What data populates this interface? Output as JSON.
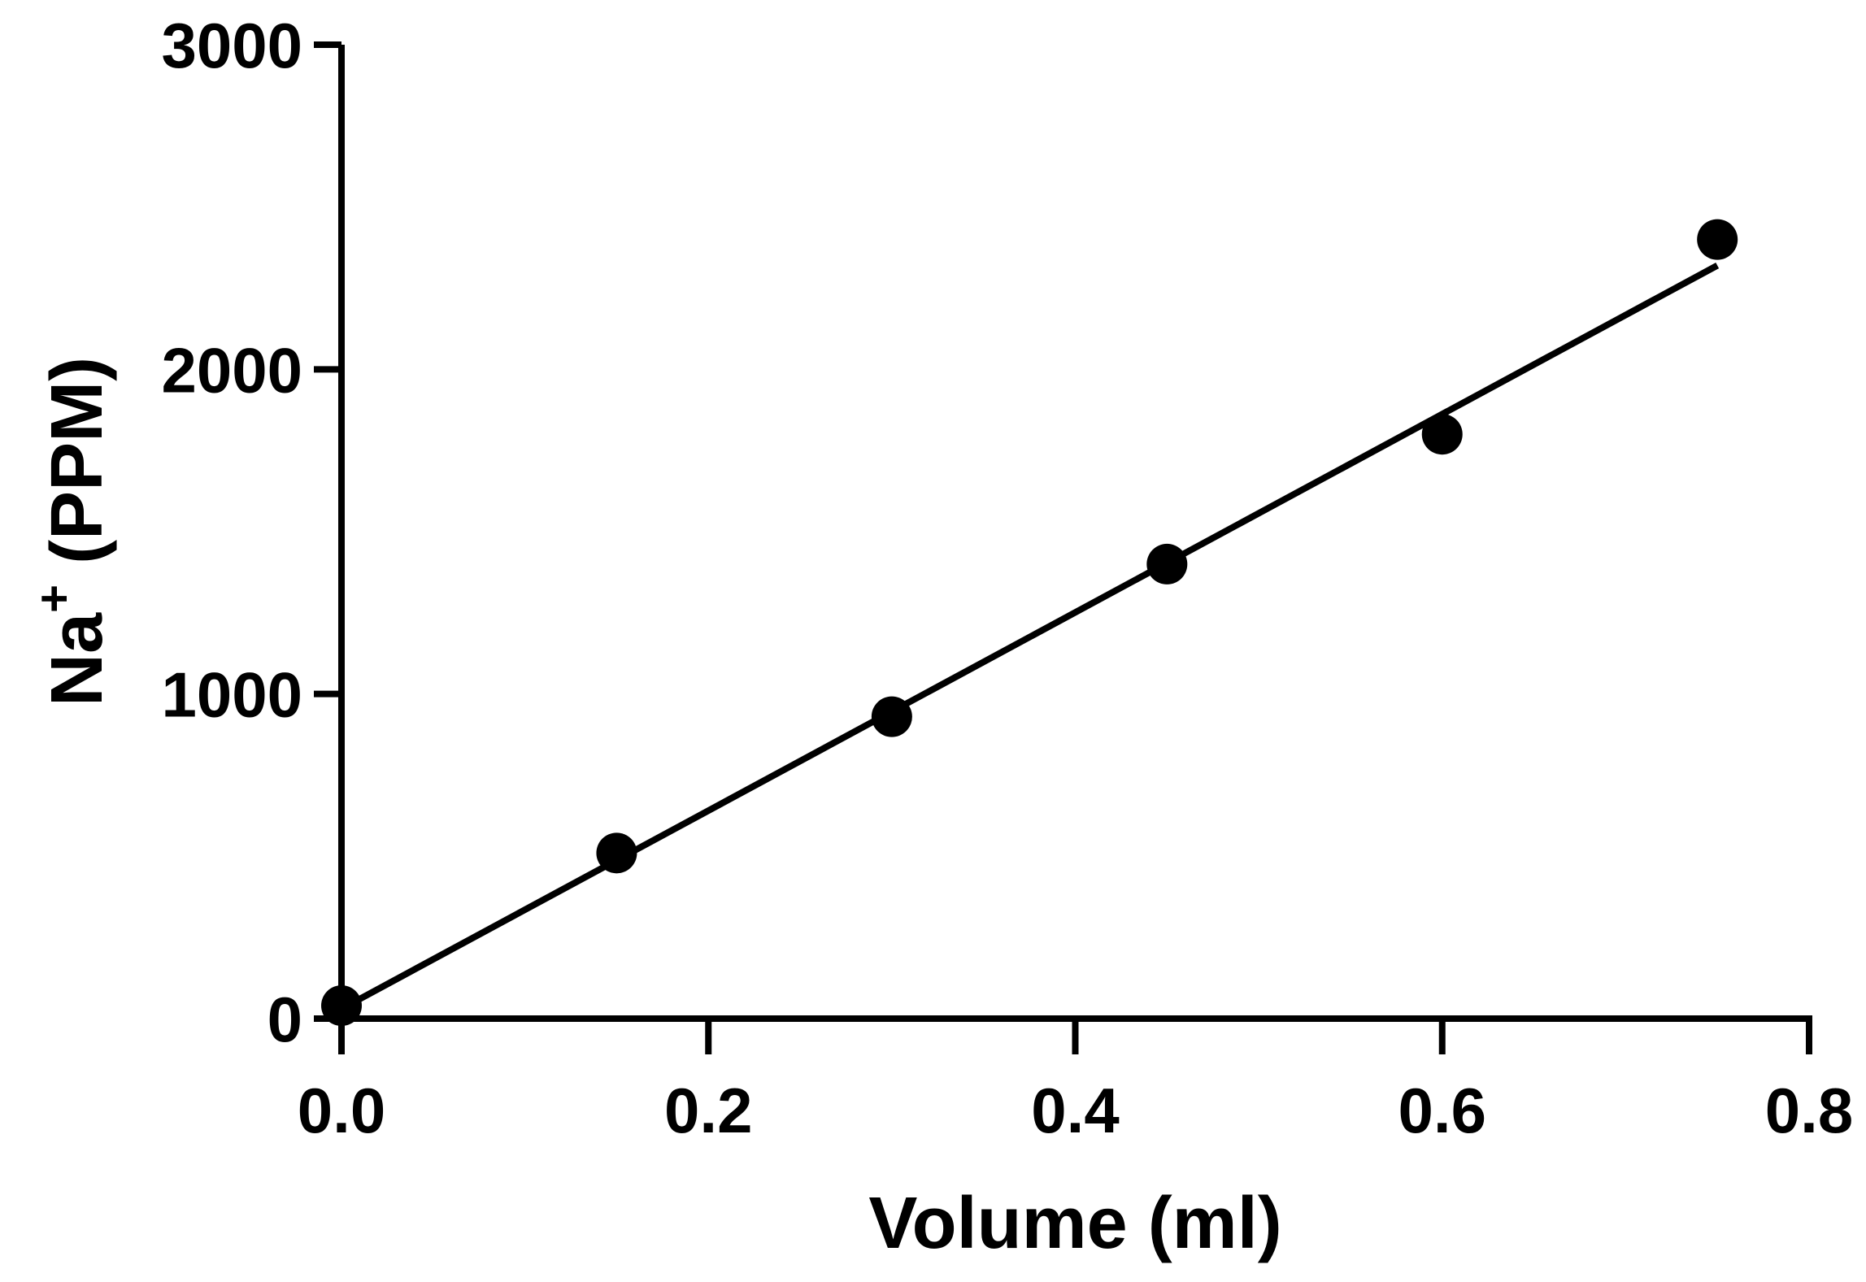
{
  "chart_data": {
    "type": "scatter",
    "xlabel": "Volume (ml)",
    "ylabel": {
      "base": "Na",
      "superscript": "+",
      "rest": " (PPM)"
    },
    "xlim": [
      0,
      0.8
    ],
    "ylim": [
      0,
      3000
    ],
    "x_ticks": [
      0.0,
      0.2,
      0.4,
      0.6,
      0.8
    ],
    "x_tick_labels": [
      "0.0",
      "0.2",
      "0.4",
      "0.6",
      "0.8"
    ],
    "y_ticks": [
      0,
      1000,
      2000,
      3000
    ],
    "y_tick_labels": [
      "0",
      "1000",
      "2000",
      "3000"
    ],
    "grid": false,
    "series": [
      {
        "x": [
          0.0,
          0.15,
          0.3,
          0.45,
          0.6,
          0.75
        ],
        "y": [
          40,
          510,
          930,
          1400,
          1800,
          2400
        ]
      }
    ],
    "fit_line": {
      "x": [
        0.0,
        0.75
      ],
      "y": [
        30,
        2320
      ]
    },
    "colors": {
      "points": "#000000",
      "line": "#000000",
      "axes": "#000000"
    }
  }
}
